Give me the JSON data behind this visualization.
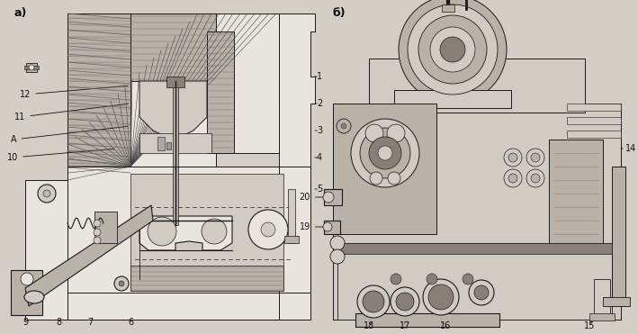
{
  "bg_color": "#d4cfc6",
  "fig_width": 7.09,
  "fig_height": 3.71,
  "dpi": 100,
  "panel_a_label": "а)",
  "panel_b_label": "б)",
  "label_fs": 7,
  "label_color": "#111111",
  "line_color": "#1a1a1a",
  "hatch_color": "#444444",
  "lw": 0.7
}
